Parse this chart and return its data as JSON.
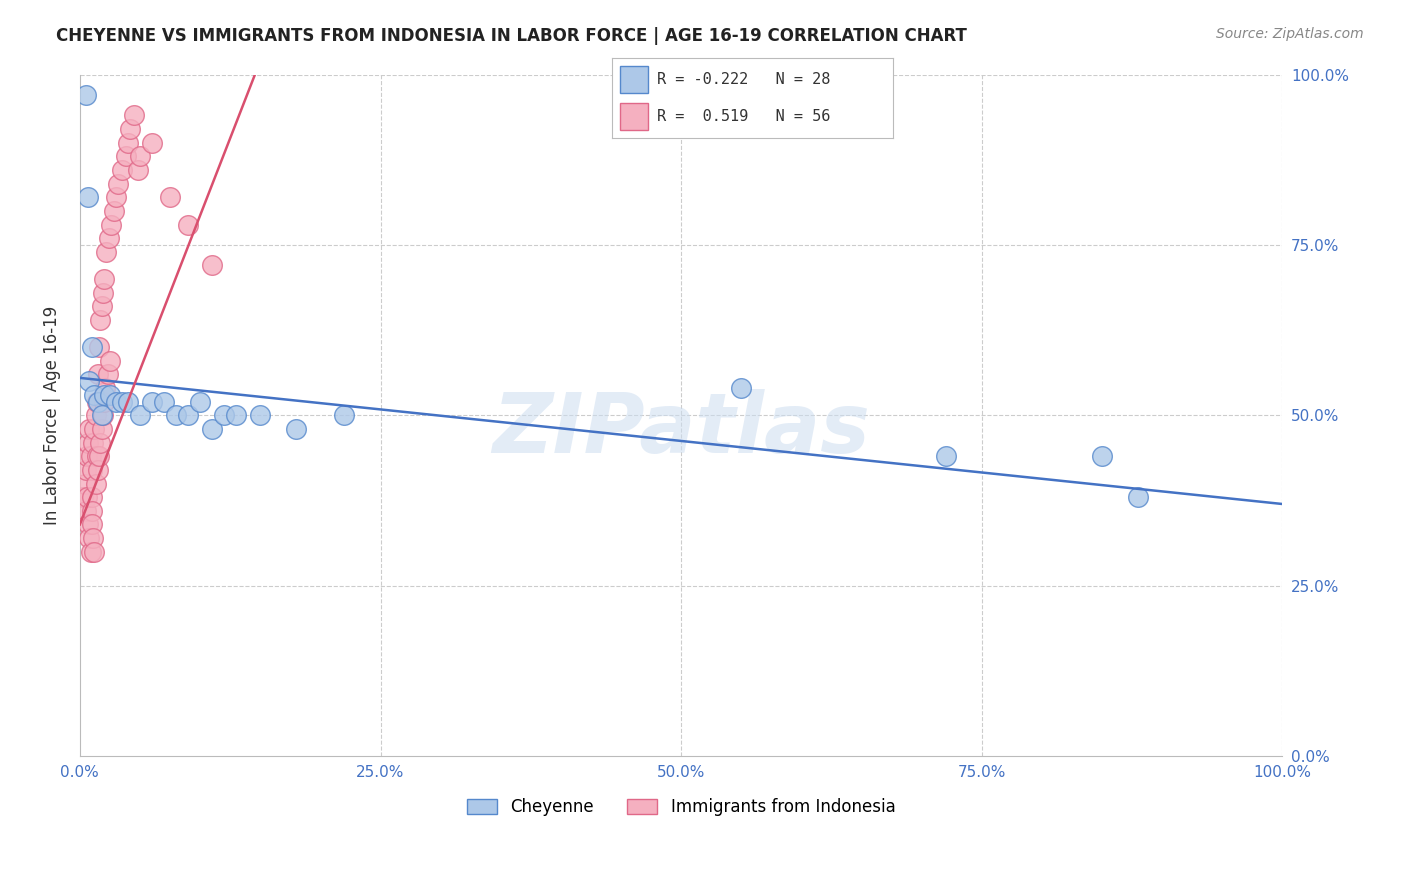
{
  "title": "CHEYENNE VS IMMIGRANTS FROM INDONESIA IN LABOR FORCE | AGE 16-19 CORRELATION CHART",
  "source": "Source: ZipAtlas.com",
  "ylabel": "In Labor Force | Age 16-19",
  "xlim": [
    0.0,
    1.0
  ],
  "ylim": [
    0.0,
    1.0
  ],
  "xticks": [
    0.0,
    0.25,
    0.5,
    0.75,
    1.0
  ],
  "yticks": [
    0.0,
    0.25,
    0.5,
    0.75,
    1.0
  ],
  "xtick_labels": [
    "0.0%",
    "25.0%",
    "50.0%",
    "75.0%",
    "100.0%"
  ],
  "ytick_labels_right": [
    "0.0%",
    "25.0%",
    "50.0%",
    "75.0%",
    "100.0%"
  ],
  "cheyenne_color": "#adc8e8",
  "indonesia_color": "#f5b0c0",
  "cheyenne_edge": "#5588cc",
  "indonesia_edge": "#e06888",
  "trendline_cheyenne_color": "#4472c4",
  "trendline_indonesia_color": "#d94f6e",
  "legend_label_cheyenne": "Cheyenne",
  "legend_label_indonesia": "Immigrants from Indonesia",
  "r_cheyenne": "-0.222",
  "n_cheyenne": "28",
  "r_indonesia": "0.519",
  "n_indonesia": "56",
  "watermark": "ZIPatlas",
  "background_color": "#ffffff",
  "grid_color": "#cccccc",
  "cheyenne_x": [
    0.005,
    0.007,
    0.008,
    0.01,
    0.012,
    0.015,
    0.018,
    0.02,
    0.025,
    0.03,
    0.035,
    0.04,
    0.05,
    0.06,
    0.07,
    0.08,
    0.09,
    0.1,
    0.11,
    0.12,
    0.13,
    0.15,
    0.18,
    0.22,
    0.55,
    0.72,
    0.85,
    0.88
  ],
  "cheyenne_y": [
    0.97,
    0.82,
    0.55,
    0.6,
    0.53,
    0.52,
    0.5,
    0.53,
    0.53,
    0.52,
    0.52,
    0.52,
    0.5,
    0.52,
    0.52,
    0.5,
    0.5,
    0.52,
    0.48,
    0.5,
    0.5,
    0.5,
    0.48,
    0.5,
    0.54,
    0.44,
    0.44,
    0.38
  ],
  "indonesia_x": [
    0.003,
    0.004,
    0.005,
    0.005,
    0.006,
    0.006,
    0.007,
    0.007,
    0.008,
    0.008,
    0.009,
    0.009,
    0.01,
    0.01,
    0.01,
    0.01,
    0.011,
    0.011,
    0.012,
    0.012,
    0.013,
    0.013,
    0.014,
    0.014,
    0.015,
    0.015,
    0.016,
    0.016,
    0.017,
    0.017,
    0.018,
    0.018,
    0.019,
    0.019,
    0.02,
    0.02,
    0.021,
    0.022,
    0.023,
    0.024,
    0.025,
    0.026,
    0.028,
    0.03,
    0.032,
    0.035,
    0.038,
    0.04,
    0.042,
    0.045,
    0.048,
    0.05,
    0.06,
    0.075,
    0.09,
    0.11
  ],
  "indonesia_y": [
    0.38,
    0.4,
    0.42,
    0.36,
    0.44,
    0.38,
    0.46,
    0.34,
    0.48,
    0.32,
    0.44,
    0.3,
    0.42,
    0.38,
    0.36,
    0.34,
    0.46,
    0.32,
    0.48,
    0.3,
    0.5,
    0.4,
    0.44,
    0.52,
    0.42,
    0.56,
    0.44,
    0.6,
    0.46,
    0.64,
    0.48,
    0.66,
    0.5,
    0.68,
    0.52,
    0.7,
    0.54,
    0.74,
    0.56,
    0.76,
    0.58,
    0.78,
    0.8,
    0.82,
    0.84,
    0.86,
    0.88,
    0.9,
    0.92,
    0.94,
    0.86,
    0.88,
    0.9,
    0.82,
    0.78,
    0.72
  ],
  "trendline_ch_x0": 0.0,
  "trendline_ch_y0": 0.555,
  "trendline_ch_x1": 1.0,
  "trendline_ch_y1": 0.37,
  "trendline_id_x0": 0.0,
  "trendline_id_y0": 0.34,
  "trendline_id_x1": 0.15,
  "trendline_id_y1": 1.02
}
